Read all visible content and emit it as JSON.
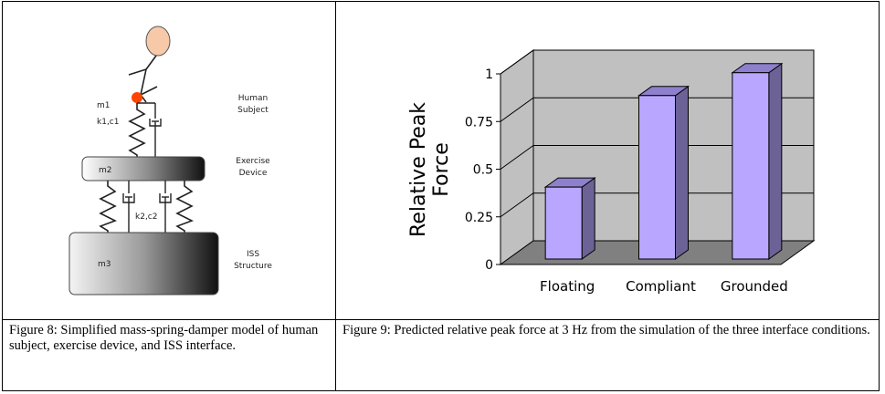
{
  "figure8": {
    "labels": {
      "m1": "m1",
      "k1c1": "k1,c1",
      "m2": "m2",
      "k2c2": "k2,c2",
      "m3": "m3",
      "human_line1": "Human",
      "human_line2": "Subject",
      "exercise_line1": "Exercise",
      "exercise_line2": "Device",
      "iss_line1": "ISS",
      "iss_line2": "Structure"
    },
    "caption": "Figure 8: Simplified mass-spring-damper model of human subject, exercise device, and ISS interface."
  },
  "figure9": {
    "caption": "Figure 9: Predicted relative peak force at 3 Hz from the simulation of the three interface conditions."
  },
  "chart_data": {
    "type": "bar",
    "categories": [
      "Floating",
      "Compliant",
      "Grounded"
    ],
    "values": [
      0.43,
      0.91,
      1.03
    ],
    "ylabel_lines": [
      "Relative Peak",
      "Force"
    ],
    "yticks": [
      "0",
      "0.25",
      "0.5",
      "0.75",
      "1"
    ],
    "ylim": [
      0,
      1
    ],
    "grid": true,
    "bar_color": "#b9a7ff",
    "bar_side_color": "#6d6296",
    "bar_top_color": "#8e80cc",
    "wall_color": "#c0c0c0",
    "floor_color": "#808080"
  }
}
